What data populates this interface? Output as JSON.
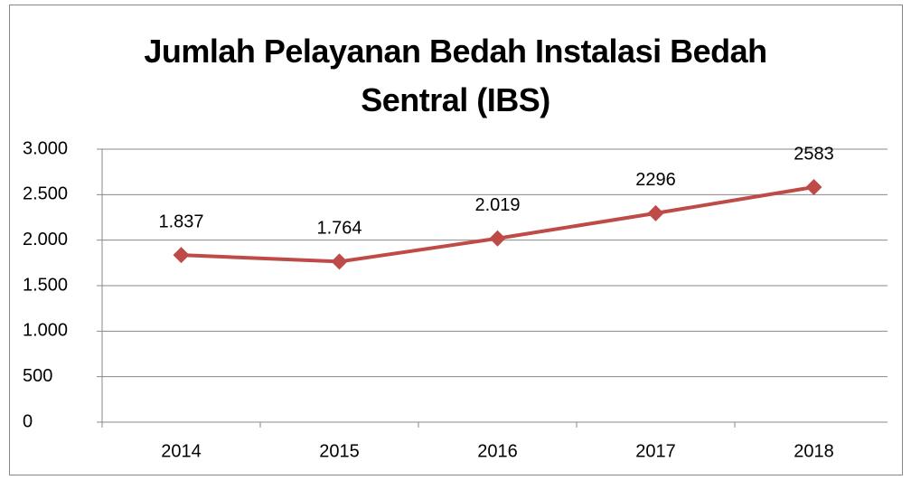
{
  "chart_data": {
    "type": "line",
    "title": "Jumlah Pelayanan Bedah Instalasi Bedah Sentral (IBS)",
    "categories": [
      "2014",
      "2015",
      "2016",
      "2017",
      "2018"
    ],
    "series": [
      {
        "color": "#be4b48",
        "values": [
          1837,
          1764,
          2019,
          2296,
          2583
        ],
        "value_labels": [
          "1.837",
          "1.764",
          "2.019",
          "2296",
          "2583"
        ]
      }
    ],
    "ylim": [
      0,
      3000
    ],
    "yticks": [
      0,
      500,
      {
        "value": 1000,
        "label": "1.000"
      },
      {
        "value": 1500,
        "label": "1.500"
      },
      {
        "value": 2000,
        "label": "2.000"
      },
      {
        "value": 2500,
        "label": "2.500"
      },
      {
        "value": 3000,
        "label": "3.000"
      }
    ],
    "grid": true
  }
}
